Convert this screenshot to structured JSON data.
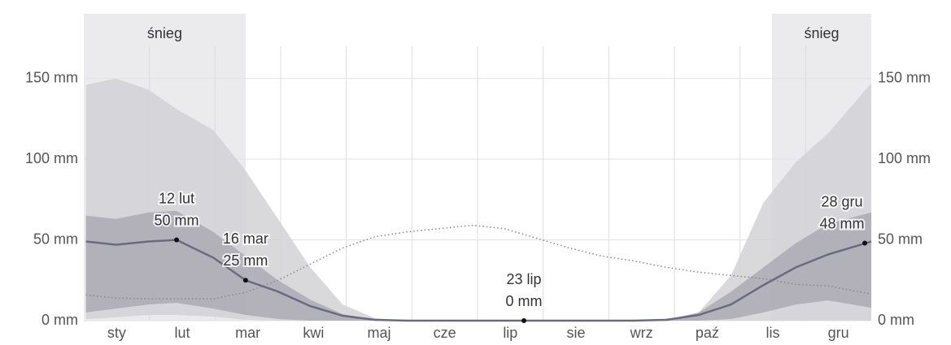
{
  "chart_data": {
    "type": "area",
    "x": [
      1,
      15,
      30,
      43,
      60,
      75,
      90,
      105,
      120,
      135,
      150,
      165,
      180,
      195,
      210,
      225,
      240,
      255,
      270,
      285,
      300,
      315,
      330,
      345,
      365
    ],
    "xlim": [
      0,
      365
    ],
    "ylim": [
      0,
      190
    ],
    "yticks": [
      {
        "value": 0,
        "label": "0 mm"
      },
      {
        "value": 50,
        "label": "50 mm"
      },
      {
        "value": 100,
        "label": "100 mm"
      },
      {
        "value": 150,
        "label": "150 mm"
      }
    ],
    "y2lim": [
      0,
      190
    ],
    "y2ticks": [
      {
        "value": 0,
        "label": "0 mm"
      },
      {
        "value": 50,
        "label": "50 mm"
      },
      {
        "value": 100,
        "label": "100 mm"
      },
      {
        "value": 150,
        "label": "150 mm"
      }
    ],
    "categories": [
      "sty",
      "lut",
      "mar",
      "kwi",
      "maj",
      "cze",
      "lip",
      "sie",
      "wrz",
      "paź",
      "lis",
      "gru"
    ],
    "grid": true,
    "shaded": [
      {
        "label": "śnieg",
        "xlim": [
          0,
          75
        ]
      },
      {
        "label": "śnieg",
        "xlim": [
          319,
          365
        ]
      }
    ],
    "shade_color": "#ebebed",
    "bands": [
      {
        "color": "#d2d2d6",
        "upper": [
          146,
          150,
          143,
          131,
          118,
          93,
          63,
          33,
          10,
          1.5,
          0,
          0,
          0,
          0,
          0,
          0,
          0,
          0,
          0,
          5,
          28,
          73,
          98,
          116,
          147
        ],
        "lower": [
          1,
          2,
          3.5,
          3.5,
          2.5,
          0.5,
          0,
          0,
          0,
          0,
          0,
          0,
          0,
          0,
          0,
          0,
          0,
          0,
          0,
          0,
          0,
          0,
          0,
          0,
          0
        ]
      },
      {
        "color": "#abaab4",
        "upper": [
          65,
          63,
          67,
          68,
          55,
          40,
          25,
          13,
          4,
          0.5,
          0,
          0,
          0,
          0,
          0,
          0,
          0,
          0,
          0.5,
          5,
          18,
          33,
          48,
          60,
          67
        ],
        "lower": [
          5,
          7.5,
          10,
          11,
          7.5,
          3.5,
          1,
          0,
          0,
          0,
          0,
          0,
          0,
          0,
          0,
          0,
          0,
          0,
          0,
          0,
          1,
          5,
          10,
          12.5,
          8
        ]
      }
    ],
    "series": [
      {
        "color": "#6b6a80",
        "dashed": false,
        "values": [
          49,
          47,
          49,
          50,
          39,
          25,
          18,
          9,
          3,
          0.5,
          0,
          0,
          0,
          0,
          0,
          0,
          0,
          0,
          0.5,
          3.5,
          10,
          22,
          33,
          41,
          49
        ]
      },
      {
        "color": "#888888",
        "dashed": true,
        "values": [
          16,
          14,
          13.5,
          13.5,
          13.5,
          17.5,
          25,
          35,
          45,
          52,
          55,
          57,
          59,
          57,
          51,
          45,
          40,
          37,
          33,
          30,
          28,
          26,
          22.5,
          21.5,
          16.5
        ]
      }
    ],
    "annotations": [
      {
        "date": "12 lut",
        "label": "50 mm",
        "x": 43,
        "y": 50
      },
      {
        "date": "16 mar",
        "label": "25 mm",
        "x": 75,
        "y": 25
      },
      {
        "date": "23 lip",
        "label": "0 mm",
        "x": 204,
        "y": 0
      },
      {
        "date": "28 gru",
        "label": "48 mm",
        "x": 362,
        "y": 48
      }
    ]
  }
}
